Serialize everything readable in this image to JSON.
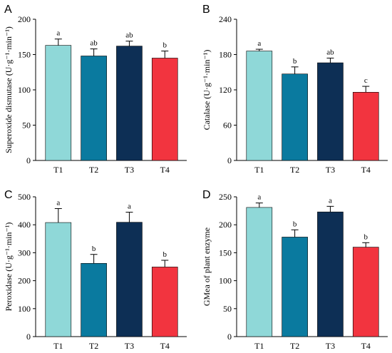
{
  "colors": {
    "T1": "#8fd8d8",
    "T2": "#0a7a9f",
    "T3": "#0d2f55",
    "T4": "#f2343f"
  },
  "chart_data": [
    {
      "type": "bar",
      "panel": "A",
      "ylabel": "Superoxide dismutase (U·g⁻¹·min⁻¹)",
      "categories": [
        "T1",
        "T2",
        "T3",
        "T4"
      ],
      "values": [
        163,
        148,
        162,
        145
      ],
      "errors": [
        9,
        10,
        7,
        10
      ],
      "letters": [
        "a",
        "ab",
        "ab",
        "b"
      ],
      "ylim": [
        0,
        200
      ],
      "yticks": [
        0,
        50,
        100,
        150,
        200
      ]
    },
    {
      "type": "bar",
      "panel": "B",
      "ylabel": "Catalase (U·g⁻¹·min⁻¹)",
      "categories": [
        "T1",
        "T2",
        "T3",
        "T4"
      ],
      "values": [
        186,
        147,
        166,
        116
      ],
      "errors": [
        3,
        12,
        8,
        10
      ],
      "letters": [
        "a",
        "b",
        "ab",
        "c"
      ],
      "ylim": [
        0,
        240
      ],
      "yticks": [
        0,
        60,
        120,
        180,
        240
      ]
    },
    {
      "type": "bar",
      "panel": "C",
      "ylabel": "Peroxidase (U·g⁻¹·min⁻¹)",
      "categories": [
        "T1",
        "T2",
        "T3",
        "T4"
      ],
      "values": [
        408,
        262,
        409,
        249
      ],
      "errors": [
        50,
        32,
        36,
        24
      ],
      "letters": [
        "a",
        "b",
        "a",
        "b"
      ],
      "ylim": [
        0,
        500
      ],
      "yticks": [
        0,
        100,
        200,
        300,
        400,
        500
      ]
    },
    {
      "type": "bar",
      "panel": "D",
      "ylabel": "GMea of plant enzyme",
      "categories": [
        "T1",
        "T2",
        "T3",
        "T4"
      ],
      "values": [
        231,
        178,
        223,
        160
      ],
      "errors": [
        8,
        13,
        10,
        8
      ],
      "letters": [
        "a",
        "b",
        "a",
        "b"
      ],
      "ylim": [
        0,
        250
      ],
      "yticks": [
        0,
        50,
        100,
        150,
        200,
        250
      ]
    }
  ]
}
